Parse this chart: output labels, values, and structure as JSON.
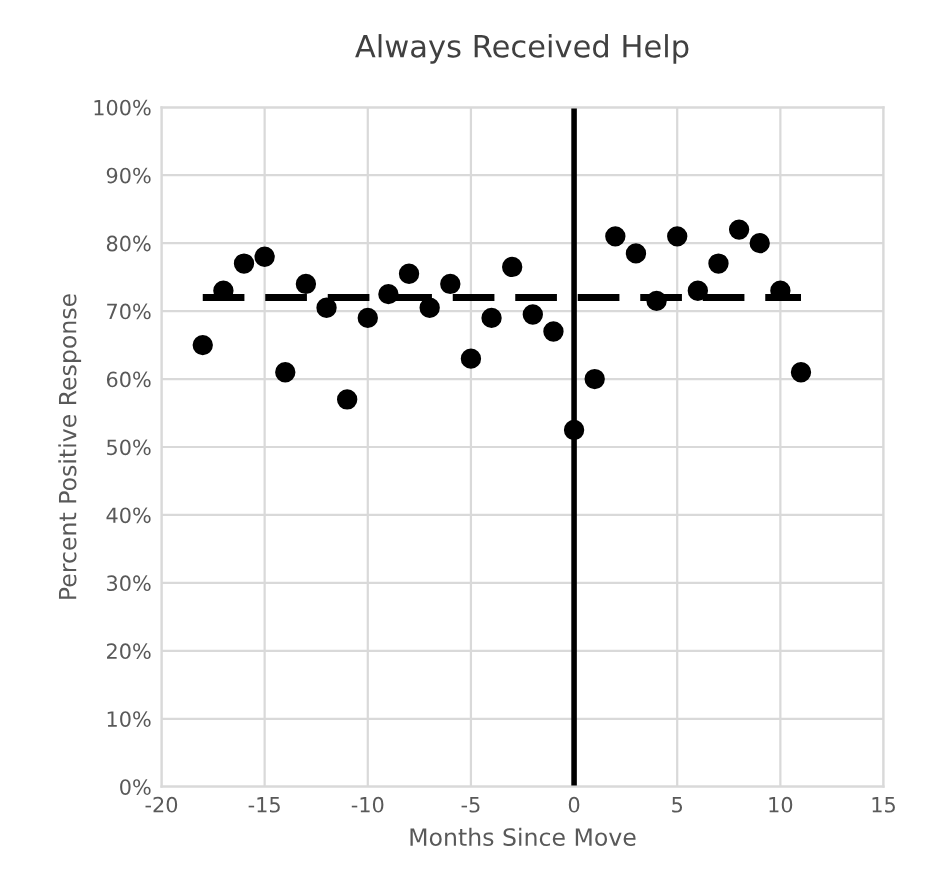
{
  "chart_data": {
    "type": "scatter",
    "title": "Always Received Help",
    "xlabel": "Months Since Move",
    "ylabel": "Percent Positive Response",
    "xlim": [
      -20,
      15
    ],
    "xticks": [
      -20,
      -15,
      -10,
      -5,
      0,
      5,
      10,
      15
    ],
    "ylim": [
      0,
      100
    ],
    "yticks": [
      {
        "value": 0,
        "label": "0%"
      },
      {
        "value": 10,
        "label": "10%"
      },
      {
        "value": 20,
        "label": "20%"
      },
      {
        "value": 30,
        "label": "30%"
      },
      {
        "value": 40,
        "label": "40%"
      },
      {
        "value": 50,
        "label": "50%"
      },
      {
        "value": 60,
        "label": "60%"
      },
      {
        "value": 70,
        "label": "70%"
      },
      {
        "value": 80,
        "label": "80%"
      },
      {
        "value": 90,
        "label": "90%"
      },
      {
        "value": 100,
        "label": "100%"
      }
    ],
    "grid": true,
    "marker": "circle",
    "series": [
      {
        "color": "#000000",
        "x": [
          -18,
          -17,
          -16,
          -15,
          -14,
          -13,
          -12,
          -11,
          -10,
          -9,
          -8,
          -7,
          -6,
          -5,
          -4,
          -3,
          -2,
          -1,
          0,
          1,
          2,
          3,
          4,
          5,
          6,
          7,
          8,
          9,
          10,
          11
        ],
        "values": [
          65,
          73,
          77,
          78,
          61,
          74,
          70.5,
          57,
          69,
          72.5,
          75.5,
          70.5,
          74,
          63,
          69,
          76.5,
          69.5,
          67,
          52.5,
          60,
          81,
          78.5,
          71.5,
          81,
          73,
          77,
          82,
          80,
          73,
          61
        ]
      },
      {
        "type": "line",
        "color": "#000000",
        "line_style": "dashed",
        "marker": "none",
        "x": [
          -18,
          11
        ],
        "values": [
          72,
          72
        ]
      }
    ],
    "ref_lines": [
      {
        "axis": "x",
        "value": 0,
        "color": "#000000",
        "line_style": "solid"
      }
    ]
  }
}
